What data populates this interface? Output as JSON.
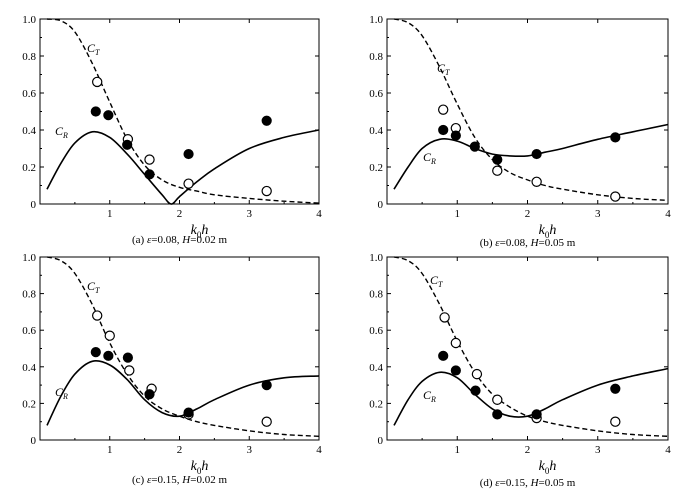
{
  "figure": {
    "xlabel_main": "k",
    "xlabel_sub": "0",
    "xlabel_tail": "h"
  },
  "chart_data": [
    {
      "type": "line",
      "panel": "(a)",
      "caption": "(a) ε=0.08, H=0.02 m",
      "caption_parts": [
        "(a) ",
        "ε",
        "=0.08, ",
        "H",
        "=0.02 m"
      ],
      "xlim": [
        0,
        4
      ],
      "ylim": [
        0,
        1
      ],
      "xticks": [
        "1",
        "2",
        "3",
        "4"
      ],
      "yticks": [
        "0",
        "0.2",
        "0.4",
        "0.6",
        "0.8",
        "1.0"
      ],
      "ct_label": "C",
      "ct_sub": "T",
      "cr_label": "C",
      "cr_sub": "R",
      "ct_curve": [
        [
          0.1,
          1.0
        ],
        [
          0.3,
          0.99
        ],
        [
          0.5,
          0.93
        ],
        [
          0.75,
          0.76
        ],
        [
          1.0,
          0.55
        ],
        [
          1.25,
          0.35
        ],
        [
          1.5,
          0.21
        ],
        [
          1.75,
          0.13
        ],
        [
          2.0,
          0.09
        ],
        [
          2.25,
          0.07
        ],
        [
          2.5,
          0.05
        ],
        [
          3.0,
          0.03
        ],
        [
          3.5,
          0.015
        ],
        [
          4.0,
          0.005
        ]
      ],
      "cr_curve": [
        [
          0.1,
          0.08
        ],
        [
          0.3,
          0.22
        ],
        [
          0.5,
          0.33
        ],
        [
          0.75,
          0.39
        ],
        [
          1.0,
          0.36
        ],
        [
          1.25,
          0.27
        ],
        [
          1.5,
          0.16
        ],
        [
          1.75,
          0.05
        ],
        [
          1.88,
          0.0
        ],
        [
          2.0,
          0.04
        ],
        [
          2.25,
          0.12
        ],
        [
          2.5,
          0.19
        ],
        [
          3.0,
          0.3
        ],
        [
          3.5,
          0.36
        ],
        [
          4.0,
          0.4
        ]
      ],
      "ct_points": [
        [
          0.82,
          0.66
        ],
        [
          1.26,
          0.35
        ],
        [
          1.57,
          0.24
        ],
        [
          2.13,
          0.11
        ],
        [
          3.25,
          0.07
        ]
      ],
      "cr_points": [
        [
          0.8,
          0.5
        ],
        [
          0.98,
          0.48
        ],
        [
          1.25,
          0.32
        ],
        [
          1.57,
          0.16
        ],
        [
          2.13,
          0.27
        ],
        [
          3.25,
          0.45
        ]
      ]
    },
    {
      "type": "line",
      "panel": "(b)",
      "caption": "(b) ε=0.08, H=0.05 m",
      "caption_parts": [
        "(b) ",
        "ε",
        "=0.08, ",
        "H",
        "=0.05 m"
      ],
      "xlim": [
        0,
        4
      ],
      "ylim": [
        0,
        1
      ],
      "xticks": [
        "1",
        "2",
        "3",
        "4"
      ],
      "yticks": [
        "0",
        "0.2",
        "0.4",
        "0.6",
        "0.8",
        "1.0"
      ],
      "ct_label": "C",
      "ct_sub": "T",
      "cr_label": "C",
      "cr_sub": "R",
      "ct_curve": [
        [
          0.1,
          1.0
        ],
        [
          0.3,
          0.98
        ],
        [
          0.5,
          0.91
        ],
        [
          0.75,
          0.74
        ],
        [
          1.0,
          0.54
        ],
        [
          1.25,
          0.36
        ],
        [
          1.5,
          0.24
        ],
        [
          1.75,
          0.17
        ],
        [
          2.0,
          0.13
        ],
        [
          2.25,
          0.1
        ],
        [
          2.5,
          0.08
        ],
        [
          3.0,
          0.05
        ],
        [
          3.5,
          0.03
        ],
        [
          4.0,
          0.02
        ]
      ],
      "cr_curve": [
        [
          0.1,
          0.08
        ],
        [
          0.3,
          0.2
        ],
        [
          0.5,
          0.3
        ],
        [
          0.75,
          0.35
        ],
        [
          1.0,
          0.34
        ],
        [
          1.25,
          0.3
        ],
        [
          1.5,
          0.27
        ],
        [
          1.75,
          0.26
        ],
        [
          2.0,
          0.26
        ],
        [
          2.25,
          0.28
        ],
        [
          2.5,
          0.3
        ],
        [
          3.0,
          0.35
        ],
        [
          3.5,
          0.39
        ],
        [
          4.0,
          0.43
        ]
      ],
      "ct_points": [
        [
          0.8,
          0.51
        ],
        [
          0.98,
          0.41
        ],
        [
          1.57,
          0.18
        ],
        [
          2.13,
          0.12
        ],
        [
          3.25,
          0.04
        ]
      ],
      "cr_points": [
        [
          0.8,
          0.4
        ],
        [
          0.98,
          0.37
        ],
        [
          1.25,
          0.31
        ],
        [
          1.57,
          0.24
        ],
        [
          2.13,
          0.27
        ],
        [
          3.25,
          0.36
        ]
      ]
    },
    {
      "type": "line",
      "panel": "(c)",
      "caption": "(c) ε=0.15, H=0.02 m",
      "caption_parts": [
        "(c) ",
        "ε",
        "=0.15, ",
        "H",
        "=0.02 m"
      ],
      "xlim": [
        0,
        4
      ],
      "ylim": [
        0,
        1
      ],
      "xticks": [
        "1",
        "2",
        "3",
        "4"
      ],
      "yticks": [
        "0",
        "0.2",
        "0.4",
        "0.6",
        "0.8",
        "1.0"
      ],
      "ct_label": "C",
      "ct_sub": "T",
      "cr_label": "C",
      "cr_sub": "R",
      "ct_curve": [
        [
          0.1,
          1.0
        ],
        [
          0.3,
          0.98
        ],
        [
          0.5,
          0.91
        ],
        [
          0.75,
          0.74
        ],
        [
          1.0,
          0.53
        ],
        [
          1.25,
          0.36
        ],
        [
          1.5,
          0.24
        ],
        [
          1.75,
          0.17
        ],
        [
          2.0,
          0.13
        ],
        [
          2.25,
          0.1
        ],
        [
          2.5,
          0.08
        ],
        [
          3.0,
          0.05
        ],
        [
          3.5,
          0.03
        ],
        [
          4.0,
          0.02
        ]
      ],
      "cr_curve": [
        [
          0.1,
          0.08
        ],
        [
          0.3,
          0.24
        ],
        [
          0.5,
          0.36
        ],
        [
          0.75,
          0.43
        ],
        [
          1.0,
          0.41
        ],
        [
          1.25,
          0.33
        ],
        [
          1.5,
          0.22
        ],
        [
          1.75,
          0.15
        ],
        [
          2.0,
          0.13
        ],
        [
          2.25,
          0.17
        ],
        [
          2.5,
          0.22
        ],
        [
          3.0,
          0.3
        ],
        [
          3.5,
          0.34
        ],
        [
          4.0,
          0.35
        ]
      ],
      "ct_points": [
        [
          0.82,
          0.68
        ],
        [
          1.0,
          0.57
        ],
        [
          1.28,
          0.38
        ],
        [
          1.6,
          0.28
        ],
        [
          2.13,
          0.14
        ],
        [
          3.25,
          0.1
        ]
      ],
      "cr_points": [
        [
          0.8,
          0.48
        ],
        [
          0.98,
          0.46
        ],
        [
          1.26,
          0.45
        ],
        [
          1.57,
          0.25
        ],
        [
          2.13,
          0.15
        ],
        [
          3.25,
          0.3
        ]
      ]
    },
    {
      "type": "line",
      "panel": "(d)",
      "caption": "(d) ε=0.15, H=0.05 m",
      "caption_parts": [
        "(d) ",
        "ε",
        "=0.15, ",
        "H",
        "=0.05 m"
      ],
      "xlim": [
        0,
        4
      ],
      "ylim": [
        0,
        1
      ],
      "xticks": [
        "1",
        "2",
        "3",
        "4"
      ],
      "yticks": [
        "0",
        "0.2",
        "0.4",
        "0.6",
        "0.8",
        "1.0"
      ],
      "ct_label": "C",
      "ct_sub": "T",
      "cr_label": "C",
      "cr_sub": "R",
      "ct_curve": [
        [
          0.1,
          1.0
        ],
        [
          0.3,
          0.98
        ],
        [
          0.5,
          0.91
        ],
        [
          0.75,
          0.74
        ],
        [
          1.0,
          0.54
        ],
        [
          1.25,
          0.37
        ],
        [
          1.5,
          0.25
        ],
        [
          1.75,
          0.18
        ],
        [
          2.0,
          0.13
        ],
        [
          2.25,
          0.1
        ],
        [
          2.5,
          0.08
        ],
        [
          3.0,
          0.05
        ],
        [
          3.5,
          0.03
        ],
        [
          4.0,
          0.02
        ]
      ],
      "cr_curve": [
        [
          0.1,
          0.08
        ],
        [
          0.3,
          0.22
        ],
        [
          0.5,
          0.32
        ],
        [
          0.75,
          0.37
        ],
        [
          1.0,
          0.34
        ],
        [
          1.25,
          0.25
        ],
        [
          1.5,
          0.17
        ],
        [
          1.75,
          0.13
        ],
        [
          2.0,
          0.13
        ],
        [
          2.25,
          0.17
        ],
        [
          2.5,
          0.22
        ],
        [
          3.0,
          0.3
        ],
        [
          3.5,
          0.35
        ],
        [
          4.0,
          0.39
        ]
      ],
      "ct_points": [
        [
          0.82,
          0.67
        ],
        [
          0.98,
          0.53
        ],
        [
          1.28,
          0.36
        ],
        [
          1.57,
          0.22
        ],
        [
          2.13,
          0.12
        ],
        [
          3.25,
          0.1
        ]
      ],
      "cr_points": [
        [
          0.8,
          0.46
        ],
        [
          0.98,
          0.38
        ],
        [
          1.26,
          0.27
        ],
        [
          1.57,
          0.14
        ],
        [
          2.13,
          0.14
        ],
        [
          3.25,
          0.28
        ]
      ]
    }
  ]
}
